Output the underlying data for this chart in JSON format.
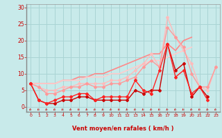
{
  "bg_color": "#c8eaea",
  "grid_color": "#aad4d4",
  "xlabel": "Vent moyen/en rafales ( km/h )",
  "xlabel_color": "#cc0000",
  "tick_color": "#cc0000",
  "xlim": [
    -0.5,
    23.5
  ],
  "ylim": [
    -1.5,
    31
  ],
  "yticks": [
    0,
    5,
    10,
    15,
    20,
    25,
    30
  ],
  "xticks": [
    0,
    1,
    2,
    3,
    4,
    5,
    6,
    7,
    8,
    9,
    10,
    11,
    12,
    13,
    14,
    15,
    16,
    17,
    18,
    19,
    20,
    21,
    22,
    23
  ],
  "lines": [
    {
      "x": [
        0,
        1,
        2,
        3,
        4,
        5,
        6,
        7,
        8,
        9,
        10,
        11,
        12,
        13,
        14,
        15,
        16,
        17,
        18,
        19,
        20,
        21,
        22
      ],
      "y": [
        7,
        2,
        1,
        1,
        2,
        2,
        3,
        3,
        2,
        2,
        2,
        2,
        2,
        5,
        4,
        5,
        5,
        19,
        11,
        13,
        3,
        6,
        3
      ],
      "color": "#cc0000",
      "lw": 1.0,
      "marker": "D",
      "ms": 2.0,
      "zorder": 5
    },
    {
      "x": [
        0,
        1,
        2,
        3,
        4,
        5,
        6,
        7,
        8,
        9,
        10,
        11,
        12,
        13,
        14,
        15,
        16,
        17,
        18,
        19,
        20,
        21,
        22
      ],
      "y": [
        7,
        2,
        1,
        2,
        3,
        3,
        4,
        4,
        2,
        3,
        3,
        3,
        3,
        8,
        5,
        4,
        11,
        19,
        9,
        11,
        4,
        6,
        2
      ],
      "color": "#ff2222",
      "lw": 1.0,
      "marker": "D",
      "ms": 2.0,
      "zorder": 5
    },
    {
      "x": [
        0,
        1,
        2,
        3,
        4,
        5,
        6,
        7,
        8,
        9,
        10,
        11,
        12,
        13,
        14,
        15,
        16,
        17,
        18,
        19,
        20,
        21,
        22,
        23
      ],
      "y": [
        7,
        6,
        4,
        4,
        5,
        6,
        6,
        7,
        6,
        6,
        7,
        7,
        8,
        9,
        12,
        14,
        12,
        24,
        21,
        18,
        10,
        6,
        6,
        12
      ],
      "color": "#ff9999",
      "lw": 1.0,
      "marker": "D",
      "ms": 2.0,
      "zorder": 4
    },
    {
      "x": [
        0,
        1,
        2,
        3,
        4,
        5,
        6,
        7,
        8,
        9,
        10,
        11,
        12,
        13,
        14,
        15,
        16,
        17,
        18,
        19,
        20,
        21,
        22,
        23
      ],
      "y": [
        7,
        6,
        5,
        5,
        6,
        6,
        7,
        7,
        7,
        7,
        8,
        8,
        9,
        11,
        13,
        16,
        12,
        27,
        21,
        17,
        13,
        6,
        5,
        12
      ],
      "color": "#ffbbbb",
      "lw": 1.0,
      "marker": "D",
      "ms": 2.0,
      "zorder": 3
    },
    {
      "x": [
        0,
        1,
        2,
        3,
        4,
        5,
        6,
        7,
        8,
        9,
        10,
        11,
        12,
        13,
        14,
        15,
        16,
        17,
        18,
        19,
        20
      ],
      "y": [
        7,
        7,
        7,
        7,
        8,
        8,
        9,
        9,
        10,
        10,
        11,
        12,
        13,
        14,
        15,
        16,
        16,
        19,
        17,
        20,
        21
      ],
      "color": "#ff8888",
      "lw": 1.2,
      "marker": null,
      "ms": 0,
      "zorder": 2
    },
    {
      "x": [
        0,
        1,
        2,
        3,
        4,
        5,
        6,
        7,
        8,
        9,
        10,
        11,
        12,
        13,
        14,
        15,
        16,
        17,
        18,
        19,
        20
      ],
      "y": [
        7,
        7,
        7,
        7,
        8,
        8,
        8,
        9,
        9,
        9,
        10,
        10,
        11,
        12,
        13,
        14,
        14,
        15,
        16,
        17,
        18
      ],
      "color": "#ffcccc",
      "lw": 1.2,
      "marker": null,
      "ms": 0,
      "zorder": 2
    }
  ]
}
